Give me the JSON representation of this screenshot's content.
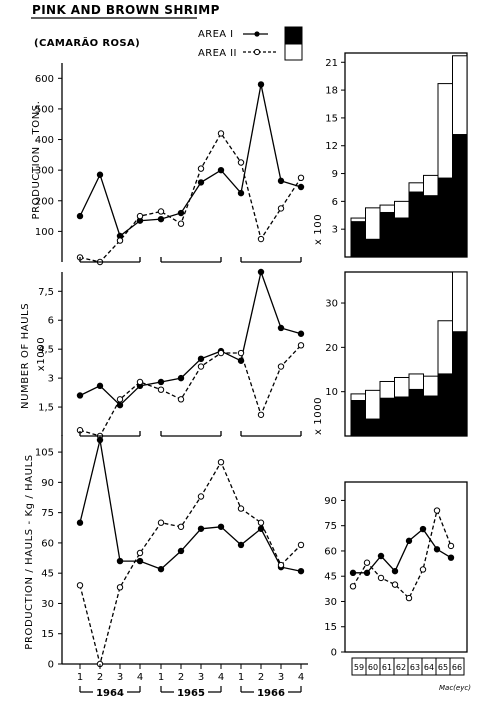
{
  "header": {
    "title": "PINK AND BROWN SHRIMP",
    "subtitle": "(CAMARÃO ROSA)"
  },
  "legend": {
    "area1": "AREA I",
    "area2": "AREA II"
  },
  "signature": "Mac(eyc)",
  "chart_data": [
    {
      "id": "production-quarterly",
      "type": "line",
      "ylabel": "PRODUCTION - TONS.",
      "ylim": [
        0,
        650
      ],
      "yticks": [
        "100",
        "200",
        "300",
        "400",
        "500",
        "600"
      ],
      "x": [
        "1964 Q1",
        "1964 Q2",
        "1964 Q3",
        "1964 Q4",
        "1965 Q1",
        "1965 Q2",
        "1965 Q3",
        "1965 Q4",
        "1966 Q1",
        "1966 Q2",
        "1966 Q3",
        "1966 Q4"
      ],
      "series": [
        {
          "name": "AREA I",
          "values": [
            150,
            285,
            85,
            135,
            140,
            160,
            260,
            300,
            225,
            580,
            265,
            245
          ]
        },
        {
          "name": "AREA II",
          "values": [
            15,
            0,
            70,
            150,
            165,
            125,
            305,
            420,
            325,
            75,
            175,
            275
          ]
        }
      ]
    },
    {
      "id": "hauls-quarterly",
      "type": "line",
      "ylabel": "NUMBER OF HAULS x1000",
      "ylim": [
        0,
        8.5
      ],
      "yticks": [
        "1,5",
        "3",
        "4,5",
        "6",
        "7,5"
      ],
      "x": [
        "1964 Q1",
        "1964 Q2",
        "1964 Q3",
        "1964 Q4",
        "1965 Q1",
        "1965 Q2",
        "1965 Q3",
        "1965 Q4",
        "1966 Q1",
        "1966 Q2",
        "1966 Q3",
        "1966 Q4"
      ],
      "series": [
        {
          "name": "AREA I",
          "values": [
            2.1,
            2.6,
            1.6,
            2.6,
            2.8,
            3.0,
            4.0,
            4.4,
            3.9,
            8.5,
            5.6,
            5.3
          ]
        },
        {
          "name": "AREA II",
          "values": [
            0.3,
            0,
            1.9,
            2.8,
            2.4,
            1.9,
            3.6,
            4.3,
            4.3,
            1.1,
            3.6,
            4.7
          ]
        }
      ]
    },
    {
      "id": "cpue-quarterly",
      "type": "line",
      "ylabel": "PRODUCTION / HAULS - Kg / HAULS",
      "ylim": [
        0,
        110
      ],
      "yticks": [
        "0",
        "15",
        "30",
        "45",
        "60",
        "75",
        "90",
        "105"
      ],
      "x": [
        "1964 Q1",
        "1964 Q2",
        "1964 Q3",
        "1964 Q4",
        "1965 Q1",
        "1965 Q2",
        "1965 Q3",
        "1965 Q4",
        "1966 Q1",
        "1966 Q2",
        "1966 Q3",
        "1966 Q4"
      ],
      "xticks": [
        "1",
        "2",
        "3",
        "4",
        "1",
        "2",
        "3",
        "4",
        "1",
        "2",
        "3",
        "4"
      ],
      "xgroups": [
        "1964",
        "1965",
        "1966"
      ],
      "series": [
        {
          "name": "AREA I",
          "values": [
            70,
            111,
            51,
            51,
            47,
            56,
            67,
            68,
            59,
            67,
            48,
            46
          ]
        },
        {
          "name": "AREA II",
          "values": [
            39,
            0,
            38,
            55,
            70,
            68,
            83,
            100,
            77,
            70,
            49,
            59
          ]
        }
      ]
    },
    {
      "id": "production-annual",
      "type": "bar",
      "ylabel": "x 100",
      "ylim": [
        0,
        22
      ],
      "yticks": [
        "3",
        "6",
        "9",
        "12",
        "15",
        "18",
        "21"
      ],
      "categories": [
        "59",
        "60",
        "61",
        "62",
        "63",
        "64",
        "65",
        "66"
      ],
      "series": [
        {
          "name": "AREA I",
          "values": [
            3.8,
            1.9,
            4.8,
            4.2,
            7.0,
            6.6,
            8.5,
            13.2
          ]
        },
        {
          "name": "AREA II",
          "values": [
            0.4,
            3.4,
            0.8,
            1.8,
            1.0,
            2.2,
            10.2,
            8.5
          ]
        }
      ]
    },
    {
      "id": "hauls-annual",
      "type": "bar",
      "ylabel": "x 1000",
      "ylim": [
        0,
        37
      ],
      "yticks": [
        "10",
        "20",
        "30"
      ],
      "categories": [
        "59",
        "60",
        "61",
        "62",
        "63",
        "64",
        "65",
        "66"
      ],
      "series": [
        {
          "name": "AREA I",
          "values": [
            8.0,
            3.8,
            8.5,
            8.8,
            10.5,
            9.0,
            14.0,
            23.5
          ]
        },
        {
          "name": "AREA II",
          "values": [
            1.5,
            6.5,
            3.8,
            4.4,
            3.5,
            4.5,
            12.0,
            13.5
          ]
        }
      ]
    },
    {
      "id": "cpue-annual",
      "type": "line",
      "ylabel": "",
      "ylim": [
        0,
        95
      ],
      "yticks": [
        "0",
        "15",
        "30",
        "45",
        "60",
        "75",
        "90"
      ],
      "x": [
        "59",
        "60",
        "61",
        "62",
        "63",
        "64",
        "65",
        "66"
      ],
      "xticks": [
        "59",
        "60",
        "61",
        "62",
        "63",
        "64",
        "65",
        "66"
      ],
      "series": [
        {
          "name": "AREA I",
          "values": [
            47,
            47,
            57,
            48,
            66,
            73,
            61,
            56
          ]
        },
        {
          "name": "AREA II",
          "values": [
            39,
            53,
            44,
            40,
            32,
            49,
            84,
            63
          ]
        }
      ]
    }
  ]
}
